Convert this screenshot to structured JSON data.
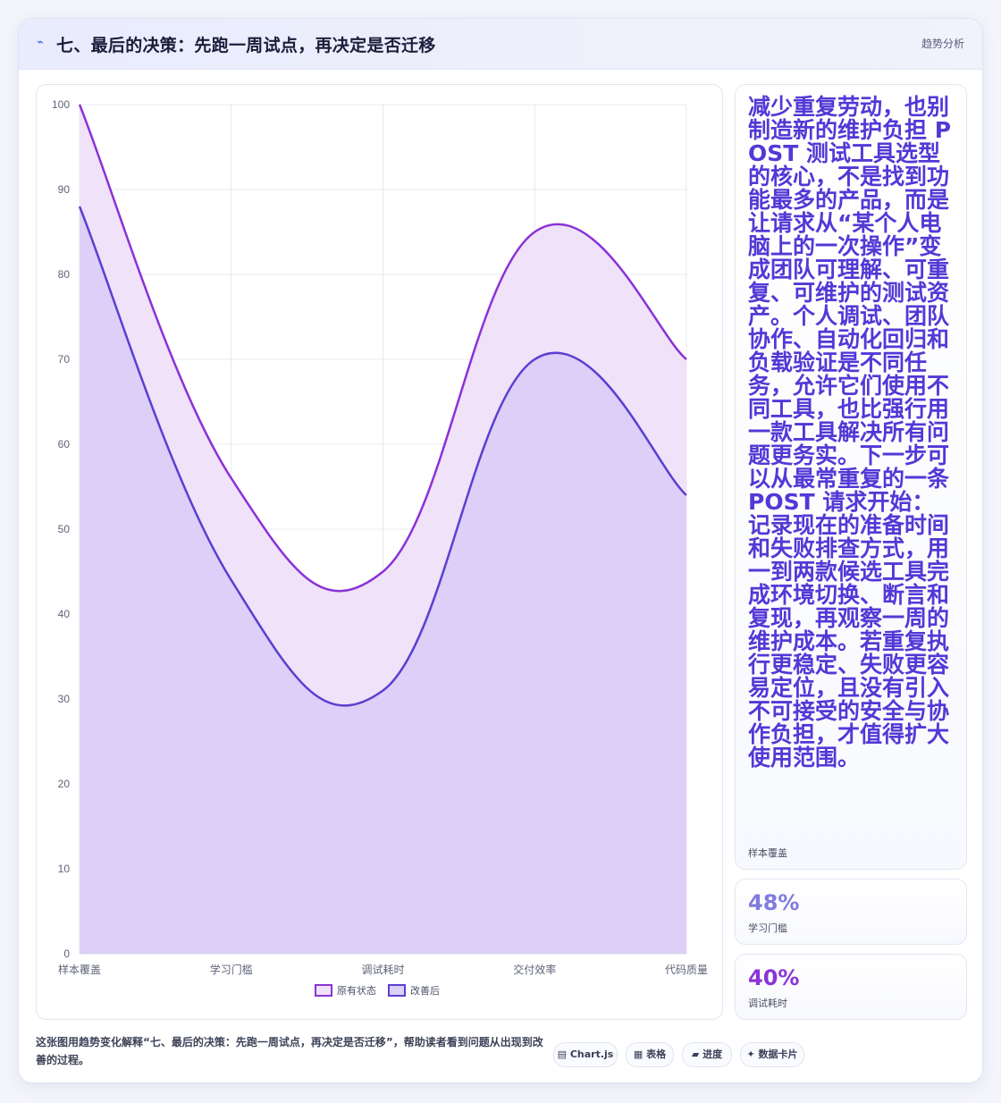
{
  "header": {
    "icon": "trend-icon",
    "title": "七、最后的决策：先跑一周试点，再决定是否迁移",
    "tag": "趋势分析"
  },
  "colors": {
    "original_line": "#8b32d6",
    "original_fill": "#efe2f9",
    "improved_line": "#5a3fd0",
    "improved_fill": "#dccff8",
    "accent_text": "#5438d6",
    "stat1": "#7f7ce0",
    "stat2": "#8a35d4"
  },
  "chart_data": {
    "type": "area",
    "categories": [
      "样本覆盖",
      "学习门槛",
      "调试耗时",
      "交付效率",
      "代码质量"
    ],
    "series": [
      {
        "name": "原有状态",
        "values": [
          100,
          56,
          45,
          85,
          70
        ]
      },
      {
        "name": "改善后",
        "values": [
          88,
          44,
          31,
          70,
          54
        ]
      }
    ],
    "ylim": [
      0,
      100
    ],
    "yticks": [
      0,
      10,
      20,
      30,
      40,
      50,
      60,
      70,
      80,
      90,
      100
    ],
    "grid": true,
    "legend": "bottom-center"
  },
  "side": {
    "text": "减少重复劳动，也别制造新的维护负担 POST 测试工具选型的核心，不是找到功能最多的产品，而是让请求从“某个人电脑上的一次操作”变成团队可理解、可重复、可维护的测试资产。个人调试、团队协作、自动化回归和负载验证是不同任务，允许它们使用不同工具，也比强行用一款工具解决所有问题更务实。下一步可以从最常重复的一条 POST 请求开始：记录现在的准备时间和失败排查方式，用一到两款候选工具完成环境切换、断言和复现，再观察一周的维护成本。若重复执行更稳定、失败更容易定位，且没有引入不可接受的安全与协作负担，才值得扩大使用范围。",
    "label": "样本覆盖"
  },
  "stats": [
    {
      "value": "48%",
      "label": "学习门槛"
    },
    {
      "value": "40%",
      "label": "调试耗时"
    }
  ],
  "caption": "这张图用趋势变化解释“七、最后的决策：先跑一周试点，再决定是否迁移”，帮助读者看到问题从出现到改善的过程。",
  "pills": [
    "▤ Chart.js",
    "▦ 表格",
    "▰ 进度",
    "✦ 数据卡片"
  ]
}
